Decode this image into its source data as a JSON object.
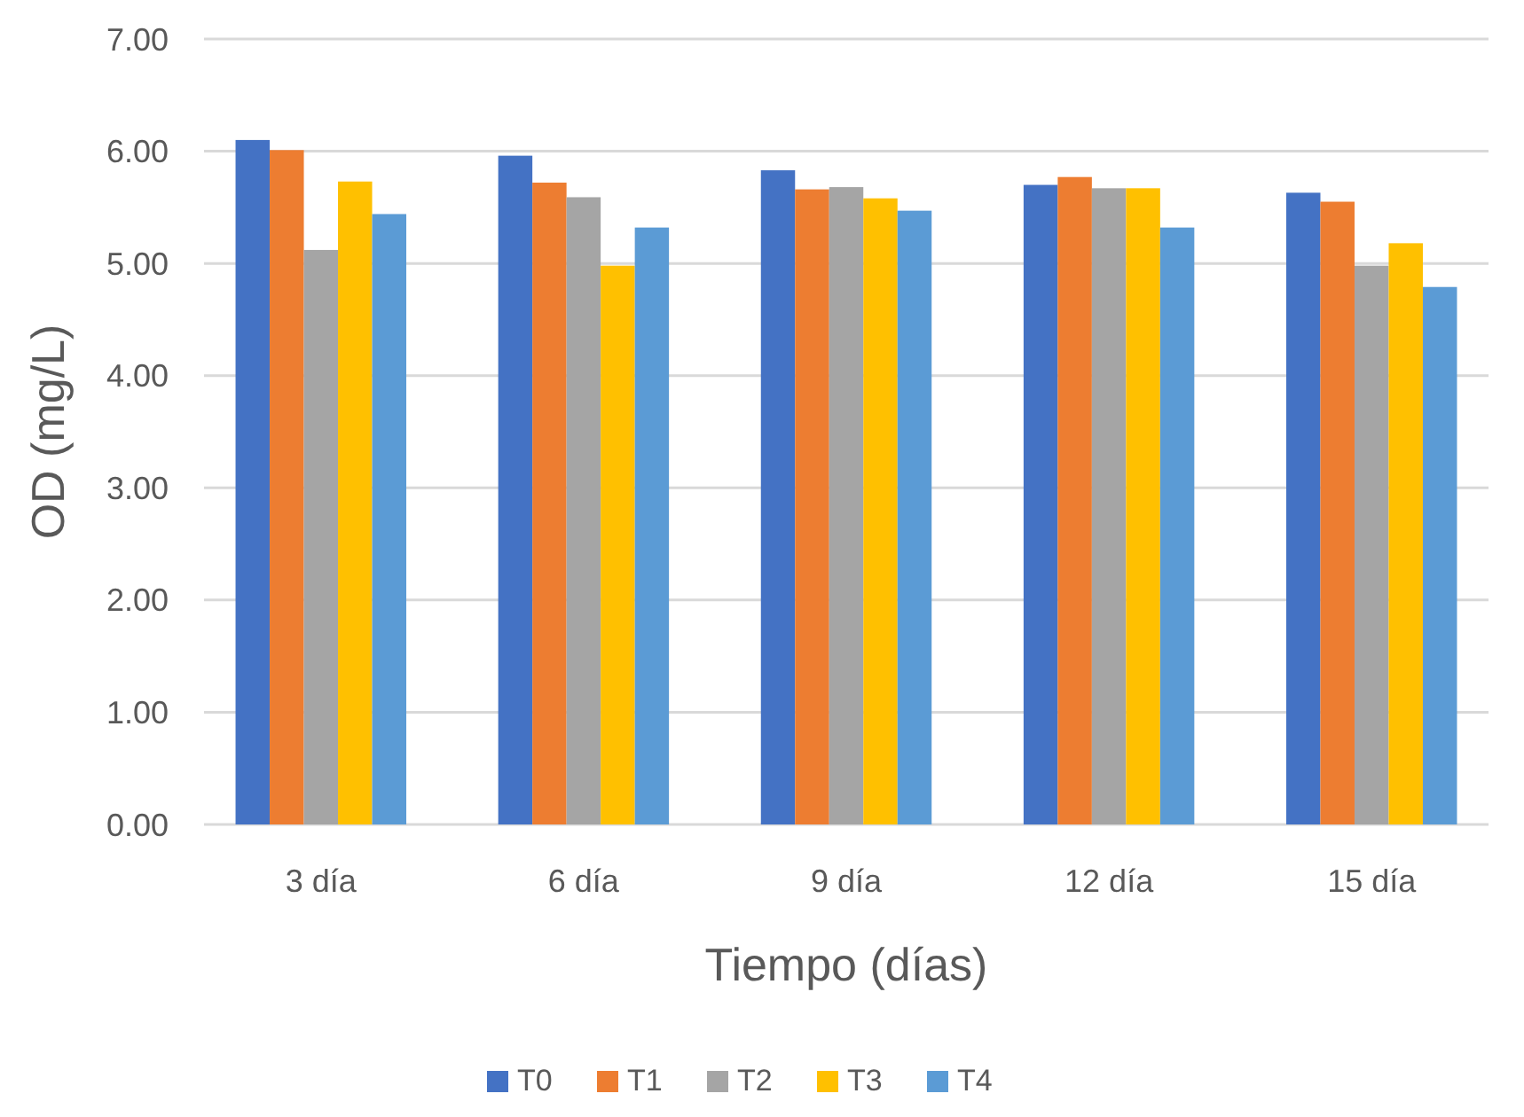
{
  "chart_data": {
    "type": "bar",
    "xlabel": "Tiempo (días)",
    "ylabel": "OD (mg/L)",
    "categories": [
      "3 día",
      "6 día",
      "9 día",
      "12 día",
      "15 día"
    ],
    "series": [
      {
        "name": "T0",
        "color": "#4472c4",
        "values": [
          6.1,
          5.96,
          5.83,
          5.7,
          5.63
        ]
      },
      {
        "name": "T1",
        "color": "#ed7d31",
        "values": [
          6.01,
          5.72,
          5.66,
          5.77,
          5.55
        ]
      },
      {
        "name": "T2",
        "color": "#a5a5a5",
        "values": [
          5.12,
          5.59,
          5.68,
          5.67,
          4.98
        ]
      },
      {
        "name": "T3",
        "color": "#ffc000",
        "values": [
          5.73,
          4.98,
          5.58,
          5.67,
          5.18
        ]
      },
      {
        "name": "T4",
        "color": "#5b9bd5",
        "values": [
          5.44,
          5.32,
          5.47,
          5.32,
          4.79
        ]
      }
    ],
    "ylim": [
      0,
      7
    ],
    "yticks": [
      {
        "value": 0,
        "label": "0.00"
      },
      {
        "value": 1,
        "label": "1.00"
      },
      {
        "value": 2,
        "label": "2.00"
      },
      {
        "value": 3,
        "label": "3.00"
      },
      {
        "value": 4,
        "label": "4.00"
      },
      {
        "value": 5,
        "label": "5.00"
      },
      {
        "value": 6,
        "label": "6.00"
      },
      {
        "value": 7,
        "label": "7.00"
      }
    ],
    "grid": "y",
    "legend": "bottom"
  }
}
